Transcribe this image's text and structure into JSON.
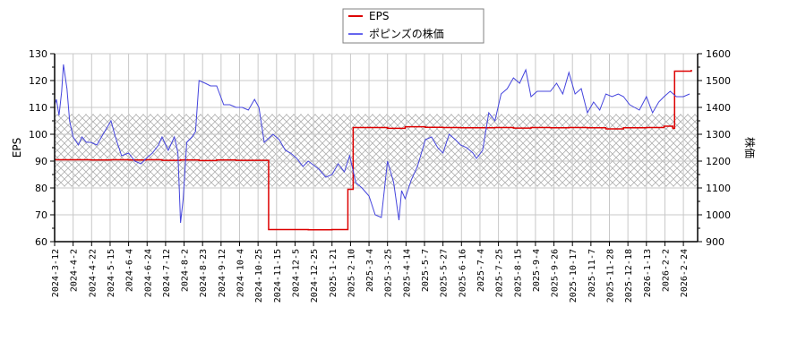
{
  "chart_data": {
    "type": "line",
    "title": "",
    "legend": {
      "position": "top-center",
      "entries": [
        {
          "label": "EPS",
          "color": "#dd0000"
        },
        {
          "label": "ポピンズの株価",
          "color": "#4444dd"
        }
      ]
    },
    "left_axis": {
      "label": "EPS",
      "ticks": [
        60,
        70,
        80,
        90,
        100,
        110,
        120,
        130
      ],
      "range": [
        60,
        130
      ]
    },
    "right_axis": {
      "label": "株価",
      "ticks": [
        900,
        1000,
        1100,
        1200,
        1300,
        1400,
        1500,
        1600
      ],
      "range": [
        900,
        1600
      ]
    },
    "x_tick_labels": [
      "2024-3-12",
      "2024-4-2",
      "2024-4-22",
      "2024-5-15",
      "2024-6-4",
      "2024-6-24",
      "2024-7-12",
      "2024-8-2",
      "2024-8-23",
      "2024-9-12",
      "2024-10-4",
      "2024-10-25",
      "2024-11-15",
      "2024-12-5",
      "2024-12-25",
      "2025-1-21",
      "2025-2-10",
      "2025-3-4",
      "2025-3-25",
      "2025-4-14",
      "2025-5-7",
      "2025-5-27",
      "2025-6-16",
      "2025-7-4",
      "2025-7-25",
      "2025-8-15",
      "2025-9-4",
      "2025-9-26",
      "2025-10-17",
      "2025-11-7",
      "2025-11-28",
      "2025-12-18",
      "2026-1-13",
      "2026-2-2",
      "2026-2-24"
    ],
    "grid": true,
    "shaded_band": {
      "eps_range": [
        80.5,
        107.5
      ],
      "stock_range": [
        1105,
        1375
      ],
      "pattern": "crosshatch"
    },
    "series": [
      {
        "name": "EPS",
        "axis": "left",
        "color": "#dd0000",
        "x": [
          "2024-3-12",
          "2024-4-2",
          "2024-4-22",
          "2024-5-15",
          "2024-6-4",
          "2024-6-24",
          "2024-7-12",
          "2024-8-2",
          "2024-8-23",
          "2024-9-12",
          "2024-10-4",
          "2024-10-25",
          "2024-11-8",
          "2024-11-10",
          "2024-12-5",
          "2024-12-25",
          "2025-1-21",
          "2025-2-7",
          "2025-2-8",
          "2025-2-12",
          "2025-2-14",
          "2025-3-4",
          "2025-3-25",
          "2025-4-14",
          "2025-5-7",
          "2025-5-27",
          "2025-6-16",
          "2025-7-4",
          "2025-7-25",
          "2025-8-15",
          "2025-9-4",
          "2025-9-26",
          "2025-10-17",
          "2025-11-7",
          "2025-11-28",
          "2025-12-18",
          "2026-1-13",
          "2026-2-2",
          "2026-2-12",
          "2026-2-14",
          "2026-2-24",
          "2026-3-5"
        ],
        "values": [
          90.5,
          90.5,
          90.4,
          90.5,
          90.4,
          90.5,
          90.3,
          90.4,
          90.2,
          90.4,
          90.3,
          90.3,
          90.3,
          64.5,
          64.5,
          64.4,
          64.5,
          64.5,
          79.5,
          79.5,
          102.5,
          102.5,
          102.2,
          102.8,
          102.6,
          102.5,
          102.4,
          102.4,
          102.5,
          102.3,
          102.5,
          102.4,
          102.5,
          102.4,
          102.0,
          102.4,
          102.5,
          103.0,
          102.2,
          123.5,
          123.5,
          124.0
        ]
      },
      {
        "name": "ポピンズの株価",
        "axis": "right",
        "color": "#4444dd",
        "x": [
          "2024-3-12",
          "2024-3-14",
          "2024-3-17",
          "2024-3-20",
          "2024-3-22",
          "2024-3-26",
          "2024-3-29",
          "2024-4-2",
          "2024-4-8",
          "2024-4-12",
          "2024-4-17",
          "2024-4-22",
          "2024-4-29",
          "2024-5-6",
          "2024-5-15",
          "2024-5-20",
          "2024-5-27",
          "2024-6-4",
          "2024-6-11",
          "2024-6-18",
          "2024-6-24",
          "2024-7-1",
          "2024-7-8",
          "2024-7-12",
          "2024-7-19",
          "2024-7-26",
          "2024-7-30",
          "2024-8-2",
          "2024-8-5",
          "2024-8-9",
          "2024-8-15",
          "2024-8-19",
          "2024-8-23",
          "2024-8-30",
          "2024-9-5",
          "2024-9-12",
          "2024-9-20",
          "2024-9-27",
          "2024-10-4",
          "2024-10-11",
          "2024-10-18",
          "2024-10-25",
          "2024-10-30",
          "2024-11-5",
          "2024-11-15",
          "2024-11-22",
          "2024-11-29",
          "2024-12-5",
          "2024-12-12",
          "2024-12-19",
          "2024-12-25",
          "2025-1-6",
          "2025-1-14",
          "2025-1-21",
          "2025-1-28",
          "2025-2-4",
          "2025-2-10",
          "2025-2-17",
          "2025-2-24",
          "2025-3-4",
          "2025-3-11",
          "2025-3-18",
          "2025-3-25",
          "2025-4-1",
          "2025-4-7",
          "2025-4-10",
          "2025-4-14",
          "2025-4-21",
          "2025-4-28",
          "2025-5-7",
          "2025-5-14",
          "2025-5-21",
          "2025-5-27",
          "2025-6-3",
          "2025-6-10",
          "2025-6-16",
          "2025-6-23",
          "2025-6-30",
          "2025-7-4",
          "2025-7-11",
          "2025-7-18",
          "2025-7-25",
          "2025-8-1",
          "2025-8-8",
          "2025-8-15",
          "2025-8-22",
          "2025-8-29",
          "2025-9-4",
          "2025-9-11",
          "2025-9-18",
          "2025-9-26",
          "2025-10-3",
          "2025-10-10",
          "2025-10-17",
          "2025-10-24",
          "2025-10-31",
          "2025-11-7",
          "2025-11-14",
          "2025-11-21",
          "2025-11-28",
          "2025-12-5",
          "2025-12-12",
          "2025-12-18",
          "2025-12-25",
          "2026-1-5",
          "2026-1-13",
          "2026-1-20",
          "2026-1-27",
          "2026-2-2",
          "2026-2-9",
          "2026-2-16",
          "2026-2-24",
          "2026-3-3"
        ],
        "values": [
          1410,
          1430,
          1370,
          1460,
          1560,
          1470,
          1350,
          1290,
          1260,
          1290,
          1270,
          1270,
          1260,
          1300,
          1350,
          1290,
          1220,
          1230,
          1200,
          1190,
          1210,
          1230,
          1260,
          1290,
          1240,
          1290,
          1230,
          970,
          1060,
          1270,
          1290,
          1310,
          1500,
          1490,
          1480,
          1480,
          1410,
          1410,
          1400,
          1400,
          1390,
          1430,
          1400,
          1270,
          1300,
          1280,
          1240,
          1230,
          1210,
          1180,
          1200,
          1170,
          1140,
          1150,
          1190,
          1160,
          1220,
          1120,
          1100,
          1070,
          1000,
          990,
          1200,
          1120,
          980,
          1090,
          1060,
          1130,
          1180,
          1280,
          1290,
          1250,
          1230,
          1300,
          1280,
          1260,
          1250,
          1230,
          1210,
          1240,
          1380,
          1350,
          1450,
          1470,
          1510,
          1490,
          1540,
          1440,
          1460,
          1460,
          1460,
          1490,
          1450,
          1530,
          1450,
          1470,
          1380,
          1420,
          1390,
          1450,
          1440,
          1450,
          1440,
          1410,
          1390,
          1440,
          1380,
          1420,
          1440,
          1460,
          1440,
          1440,
          1450
        ]
      }
    ]
  }
}
